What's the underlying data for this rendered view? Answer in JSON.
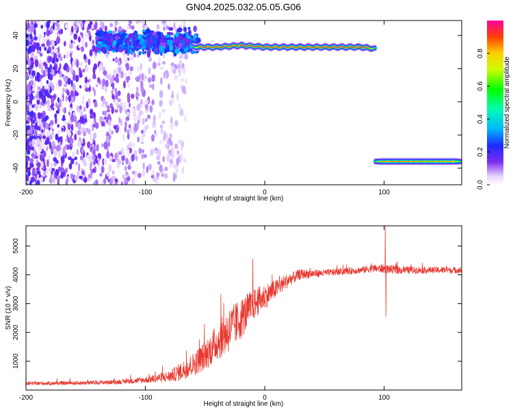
{
  "title": "GN04.2025.032.05.05.G06",
  "chart_data": [
    {
      "type": "heatmap",
      "xlabel": "Height of straight line (km)",
      "ylabel": "Frequency (Hz)",
      "xlim": [
        -200,
        165
      ],
      "ylim": [
        -50,
        49
      ],
      "x_ticks": [
        -200,
        -100,
        0,
        100
      ],
      "x_tick_labels": [
        "-200",
        "-100",
        "0",
        "100"
      ],
      "y_ticks": [
        -40,
        -20,
        0,
        20,
        40
      ],
      "y_tick_labels": [
        "-40",
        "-20",
        "0",
        "20",
        "40"
      ],
      "colorbar": {
        "label": "Normalized spectral amplitude",
        "range": [
          0,
          1
        ],
        "ticks": [
          0.0,
          0.2,
          0.4,
          0.6,
          0.8
        ],
        "tick_labels": [
          "0.0",
          "0.2",
          "0.4",
          "0.6",
          "0.8"
        ]
      },
      "features": [
        {
          "kind": "noise-speckle",
          "x_range": [
            -200,
            -65
          ],
          "y_range": [
            -50,
            49
          ],
          "amplitude": 0.15
        },
        {
          "kind": "dense-band",
          "x_range": [
            -140,
            -55
          ],
          "y_range": [
            28,
            44
          ],
          "amplitude": 0.25
        },
        {
          "kind": "main-line",
          "points": [
            [
              -60,
              33
            ],
            [
              -40,
              33
            ],
            [
              -20,
              34
            ],
            [
              0,
              33
            ],
            [
              20,
              33
            ],
            [
              50,
              33
            ],
            [
              80,
              33
            ],
            [
              93,
              32
            ]
          ],
          "amplitude": 1.0
        },
        {
          "kind": "aliased-line",
          "points": [
            [
              92,
              -36
            ],
            [
              110,
              -36
            ],
            [
              140,
              -36
            ],
            [
              165,
              -36
            ]
          ],
          "amplitude": 0.95
        }
      ]
    },
    {
      "type": "line",
      "xlabel": "Height of straight line (km)",
      "ylabel": "SNR (10 * v/v)",
      "xlim": [
        -200,
        165
      ],
      "ylim": [
        0,
        5700
      ],
      "x_ticks": [
        -200,
        -100,
        0,
        100
      ],
      "x_tick_labels": [
        "-200",
        "-100",
        "0",
        "100"
      ],
      "y_ticks": [
        1000,
        2000,
        3000,
        4000,
        5000
      ],
      "y_tick_labels": [
        "1000",
        "2000",
        "3000",
        "4000",
        "5000"
      ],
      "series": [
        {
          "color": "#e8382f",
          "envelope": {
            "x": [
              -200,
              -150,
              -120,
              -100,
              -80,
              -70,
              -60,
              -50,
              -40,
              -30,
              -20,
              -10,
              0,
              10,
              20,
              30,
              50,
              80,
              90,
              100,
              110,
              130,
              165
            ],
            "mean": [
              220,
              240,
              280,
              340,
              450,
              620,
              850,
              1150,
              1600,
              2000,
              2400,
              2900,
              3200,
              3500,
              3800,
              4000,
              4050,
              4150,
              4200,
              4200,
              4150,
              4150,
              4150
            ],
            "spread": [
              80,
              90,
              100,
              140,
              250,
              400,
              500,
              650,
              800,
              1000,
              900,
              700,
              550,
              400,
              300,
              220,
              150,
              150,
              170,
              200,
              180,
              150,
              140
            ]
          },
          "peaks": [
            {
              "x": -10,
              "y": 4560
            },
            {
              "x": 101,
              "y": 5680
            },
            {
              "x": 101.5,
              "y": 2550
            }
          ]
        }
      ]
    }
  ]
}
